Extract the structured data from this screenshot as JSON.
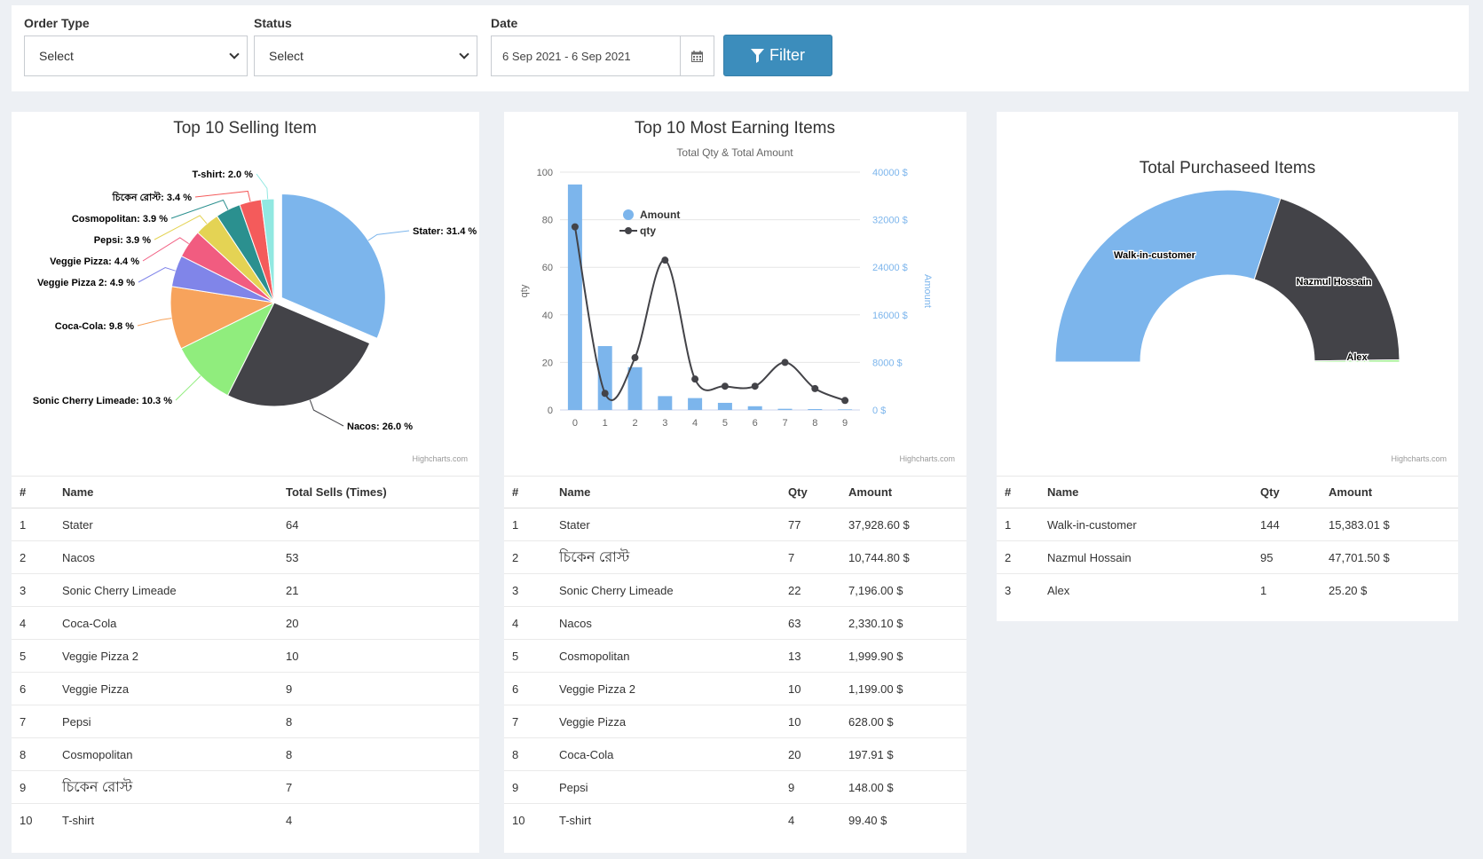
{
  "filters": {
    "order_type": {
      "label": "Order Type",
      "value": "Select"
    },
    "status": {
      "label": "Status",
      "value": "Select"
    },
    "date": {
      "label": "Date",
      "value": "6 Sep 2021 - 6 Sep 2021"
    },
    "filter_button": "Filter"
  },
  "credit": "Highcharts.com",
  "charts": {
    "selling": {
      "title": "Top 10 Selling Item",
      "columns": [
        "#",
        "Name",
        "Total Sells (Times)"
      ],
      "rows": [
        [
          "1",
          "Stater",
          "64"
        ],
        [
          "2",
          "Nacos",
          "53"
        ],
        [
          "3",
          "Sonic Cherry Limeade",
          "21"
        ],
        [
          "4",
          "Coca-Cola",
          "20"
        ],
        [
          "5",
          "Veggie Pizza 2",
          "10"
        ],
        [
          "6",
          "Veggie Pizza",
          "9"
        ],
        [
          "7",
          "Pepsi",
          "8"
        ],
        [
          "8",
          "Cosmopolitan",
          "8"
        ],
        [
          "9",
          "চিকেন রোস্ট",
          "7"
        ],
        [
          "10",
          "T-shirt",
          "4"
        ]
      ]
    },
    "earning": {
      "title": "Top 10 Most Earning Items",
      "subtitle": "Total Qty & Total Amount",
      "columns": [
        "#",
        "Name",
        "Qty",
        "Amount"
      ],
      "rows": [
        [
          "1",
          "Stater",
          "77",
          "37,928.60 $"
        ],
        [
          "2",
          "চিকেন রোস্ট",
          "7",
          "10,744.80 $"
        ],
        [
          "3",
          "Sonic Cherry Limeade",
          "22",
          "7,196.00 $"
        ],
        [
          "4",
          "Nacos",
          "63",
          "2,330.10 $"
        ],
        [
          "5",
          "Cosmopolitan",
          "13",
          "1,999.90 $"
        ],
        [
          "6",
          "Veggie Pizza 2",
          "10",
          "1,199.00 $"
        ],
        [
          "7",
          "Veggie Pizza",
          "10",
          "628.00 $"
        ],
        [
          "8",
          "Coca-Cola",
          "20",
          "197.91 $"
        ],
        [
          "9",
          "Pepsi",
          "9",
          "148.00 $"
        ],
        [
          "10",
          "T-shirt",
          "4",
          "99.40 $"
        ]
      ]
    },
    "purchased": {
      "title": "Total Purchaseed Items",
      "columns": [
        "#",
        "Name",
        "Qty",
        "Amount"
      ],
      "rows": [
        [
          "1",
          "Walk-in-customer",
          "144",
          "15,383.01 $"
        ],
        [
          "2",
          "Nazmul Hossain",
          "95",
          "47,701.50 $"
        ],
        [
          "3",
          "Alex",
          "1",
          "25.20 $"
        ]
      ]
    }
  },
  "chart_data": [
    {
      "type": "pie",
      "title": "Top 10 Selling Item",
      "slices": [
        {
          "label": "Stater: 31.4 %",
          "value": 31.4,
          "color": "#7cb5ec",
          "sliced": true
        },
        {
          "label": "Nacos: 26.0 %",
          "value": 26.0,
          "color": "#434348"
        },
        {
          "label": "Sonic Cherry Limeade: 10.3 %",
          "value": 10.3,
          "color": "#90ed7d"
        },
        {
          "label": "Coca-Cola: 9.8 %",
          "value": 9.8,
          "color": "#f7a35c"
        },
        {
          "label": "Veggie Pizza 2: 4.9 %",
          "value": 4.9,
          "color": "#8085e9"
        },
        {
          "label": "Veggie Pizza: 4.4 %",
          "value": 4.4,
          "color": "#f15c80"
        },
        {
          "label": "Pepsi: 3.9 %",
          "value": 3.9,
          "color": "#e4d354"
        },
        {
          "label": "Cosmopolitan: 3.9 %",
          "value": 3.9,
          "color": "#2b908f"
        },
        {
          "label": "চিকেন রোস্ট: 3.4 %",
          "value": 3.4,
          "color": "#f45b5b"
        },
        {
          "label": "T-shirt: 2.0 %",
          "value": 2.0,
          "color": "#91e8e1"
        }
      ]
    },
    {
      "type": "bar+line",
      "title": "Top 10 Most Earning Items",
      "subtitle": "Total Qty & Total Amount",
      "categories": [
        "0",
        "1",
        "2",
        "3",
        "4",
        "5",
        "6",
        "7",
        "8",
        "9"
      ],
      "series": [
        {
          "name": "Amount",
          "type": "bar",
          "axis": "right",
          "color": "#7cb5ec",
          "values": [
            37928.6,
            10744.8,
            7196.0,
            2330.1,
            1999.9,
            1199.0,
            628.0,
            197.91,
            148.0,
            99.4
          ]
        },
        {
          "name": "qty",
          "type": "line",
          "axis": "left",
          "color": "#434348",
          "values": [
            77,
            7,
            22,
            63,
            13,
            10,
            10,
            20,
            9,
            4
          ]
        }
      ],
      "y_left": {
        "label": "qty",
        "range": [
          0,
          100
        ],
        "ticks": [
          "0",
          "20",
          "40",
          "60",
          "80",
          "100"
        ]
      },
      "y_right": {
        "label": "Amount",
        "range": [
          0,
          40000
        ],
        "ticks": [
          "0 $",
          "8000 $",
          "16000 $",
          "24000 $",
          "32000 $",
          "40000 $"
        ]
      },
      "legend_position": "top-left"
    },
    {
      "type": "pie",
      "variant": "semi-donut",
      "title": "Total Purchaseed Items",
      "slices": [
        {
          "label": "Walk-in-customer",
          "value": 144,
          "color": "#7cb5ec"
        },
        {
          "label": "Nazmul Hossain",
          "value": 95,
          "color": "#434348"
        },
        {
          "label": "Alex",
          "value": 1,
          "color": "#90ed7d"
        }
      ]
    }
  ]
}
